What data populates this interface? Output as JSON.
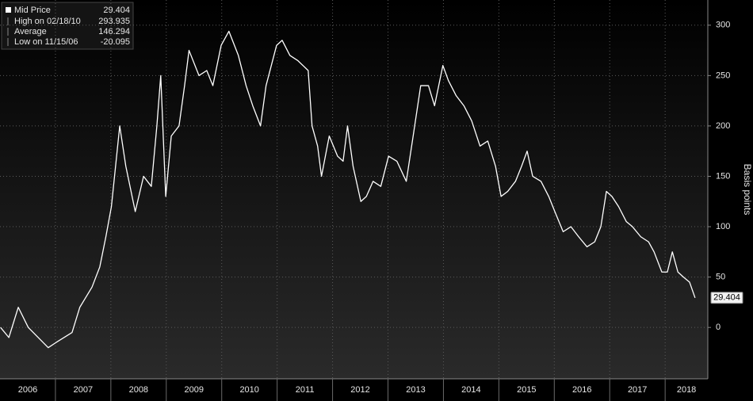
{
  "chart_data": {
    "type": "line",
    "y_label": "Basis points",
    "x": [
      2006.01,
      2006.16,
      2006.33,
      2006.51,
      2006.87,
      2007.01,
      2007.3,
      2007.44,
      2007.66,
      2007.8,
      2007.91,
      2008.01,
      2008.16,
      2008.27,
      2008.44,
      2008.59,
      2008.73,
      2008.83,
      2008.9,
      2008.99,
      2009.09,
      2009.23,
      2009.33,
      2009.41,
      2009.59,
      2009.73,
      2009.84,
      2009.99,
      2010.13,
      2010.3,
      2010.44,
      2010.56,
      2010.7,
      2010.8,
      2010.99,
      2011.09,
      2011.23,
      2011.37,
      2011.56,
      2011.63,
      2011.73,
      2011.8,
      2011.94,
      2012.09,
      2012.19,
      2012.27,
      2012.37,
      2012.51,
      2012.61,
      2012.73,
      2012.87,
      2013.01,
      2013.16,
      2013.33,
      2013.44,
      2013.59,
      2013.73,
      2013.84,
      2013.99,
      2014.09,
      2014.23,
      2014.37,
      2014.51,
      2014.66,
      2014.8,
      2014.94,
      2015.04,
      2015.16,
      2015.3,
      2015.41,
      2015.51,
      2015.61,
      2015.76,
      2015.9,
      2016.01,
      2016.16,
      2016.3,
      2016.44,
      2016.59,
      2016.73,
      2016.84,
      2016.94,
      2017.04,
      2017.16,
      2017.3,
      2017.41,
      2017.56,
      2017.7,
      2017.8,
      2017.94,
      2018.04,
      2018.13,
      2018.23,
      2018.33,
      2018.44,
      2018.54
    ],
    "series": [
      {
        "name": "Mid Price",
        "color": "#ffffff",
        "values": [
          0,
          -10,
          20,
          0,
          -20.095,
          -15,
          -5,
          20,
          40,
          60,
          90,
          120,
          200,
          160,
          115,
          150,
          140,
          200,
          250,
          130,
          190,
          200,
          240,
          275,
          250,
          255,
          240,
          280,
          293.935,
          270,
          240,
          220,
          200,
          240,
          280,
          285,
          270,
          265,
          255,
          200,
          180,
          150,
          190,
          170,
          165,
          200,
          160,
          125,
          130,
          145,
          140,
          170,
          165,
          145,
          185,
          240,
          240,
          220,
          260,
          245,
          230,
          220,
          205,
          180,
          185,
          160,
          130,
          135,
          145,
          160,
          175,
          150,
          145,
          130,
          115,
          95,
          100,
          90,
          80,
          85,
          100,
          135,
          130,
          120,
          105,
          100,
          90,
          85,
          75,
          55,
          55,
          75,
          55,
          50,
          45,
          29.404
        ]
      }
    ],
    "stats": [
      {
        "label": "High on 02/18/10",
        "value": 293.935
      },
      {
        "label": "Average",
        "value": 146.294
      },
      {
        "label": "Low on 11/15/06",
        "value": -20.095
      }
    ],
    "xlim": [
      2006,
      2018.77
    ],
    "xticks": [
      2006,
      2007,
      2008,
      2009,
      2010,
      2011,
      2012,
      2013,
      2014,
      2015,
      2016,
      2017,
      2018
    ],
    "ylim": [
      -51,
      325
    ],
    "yticks": [
      0,
      50,
      100,
      150,
      200,
      250,
      300
    ],
    "grid": true
  }
}
